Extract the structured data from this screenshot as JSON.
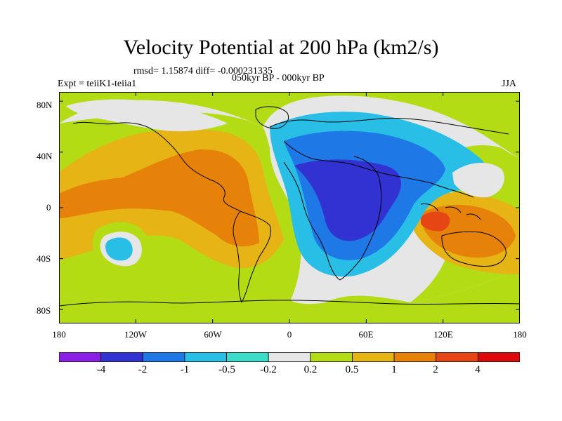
{
  "title": "Velocity Potential at 200 hPa (km2/s)",
  "stats_line": "rmsd= 1.15874 diff= -0.000231335",
  "left_label": "Expt = teiiK1-teiia1",
  "center_label": "050kyr BP - 000kyr BP",
  "right_label": "JJA",
  "y_axis_labels": [
    "80N",
    "40N",
    "0",
    "40S",
    "80S"
  ],
  "x_axis_labels": [
    "180",
    "120W",
    "60W",
    "0",
    "60E",
    "120E",
    "180"
  ],
  "colorbar": {
    "labels": [
      "-4",
      "-2",
      "-1",
      "-0.5",
      "-0.2",
      "0.2",
      "0.5",
      "1",
      "2",
      "4"
    ],
    "colors": [
      "#8c1ee6",
      "#3232d2",
      "#1e78e6",
      "#28bee6",
      "#3cdcc8",
      "#e6e6e6",
      "#b4dc14",
      "#e6b414",
      "#e6820a",
      "#e64614",
      "#dc0a0a"
    ]
  },
  "map_colors": {
    "background": "#e6e6e6",
    "v_neg4": "#8c1ee6",
    "v_neg2": "#3232d2",
    "v_neg1": "#1e78e6",
    "v_neg05": "#28bee6",
    "v_neg02": "#3cdcc8",
    "v_02": "#b4dc14",
    "v_05": "#e6b414",
    "v_1": "#e6820a",
    "v_2": "#e64614",
    "coast": "#000000"
  }
}
